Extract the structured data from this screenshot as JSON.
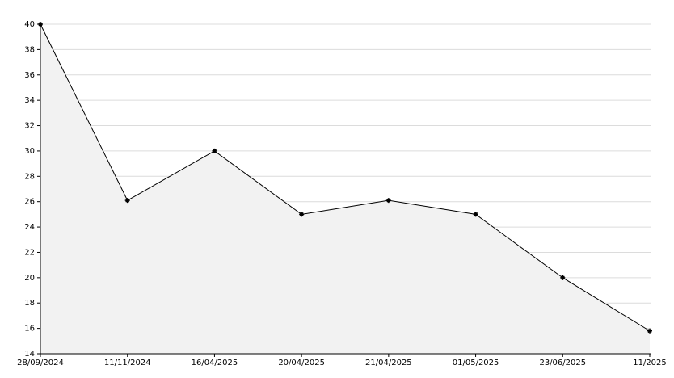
{
  "chart_data": {
    "type": "area",
    "categories": [
      "28/09/2024",
      "11/11/2024",
      "16/04/2025",
      "20/04/2025",
      "21/04/2025",
      "01/05/2025",
      "23/06/2025",
      "11/2025"
    ],
    "values": [
      40,
      26.1,
      30,
      25,
      26.1,
      25,
      20,
      15.8
    ],
    "color": "#000000",
    "fill": "#f2f2f2",
    "ylim": [
      14,
      40
    ],
    "yticks": [
      14,
      16,
      18,
      20,
      22,
      24,
      26,
      28,
      30,
      32,
      34,
      36,
      38,
      40
    ],
    "grid": true
  }
}
